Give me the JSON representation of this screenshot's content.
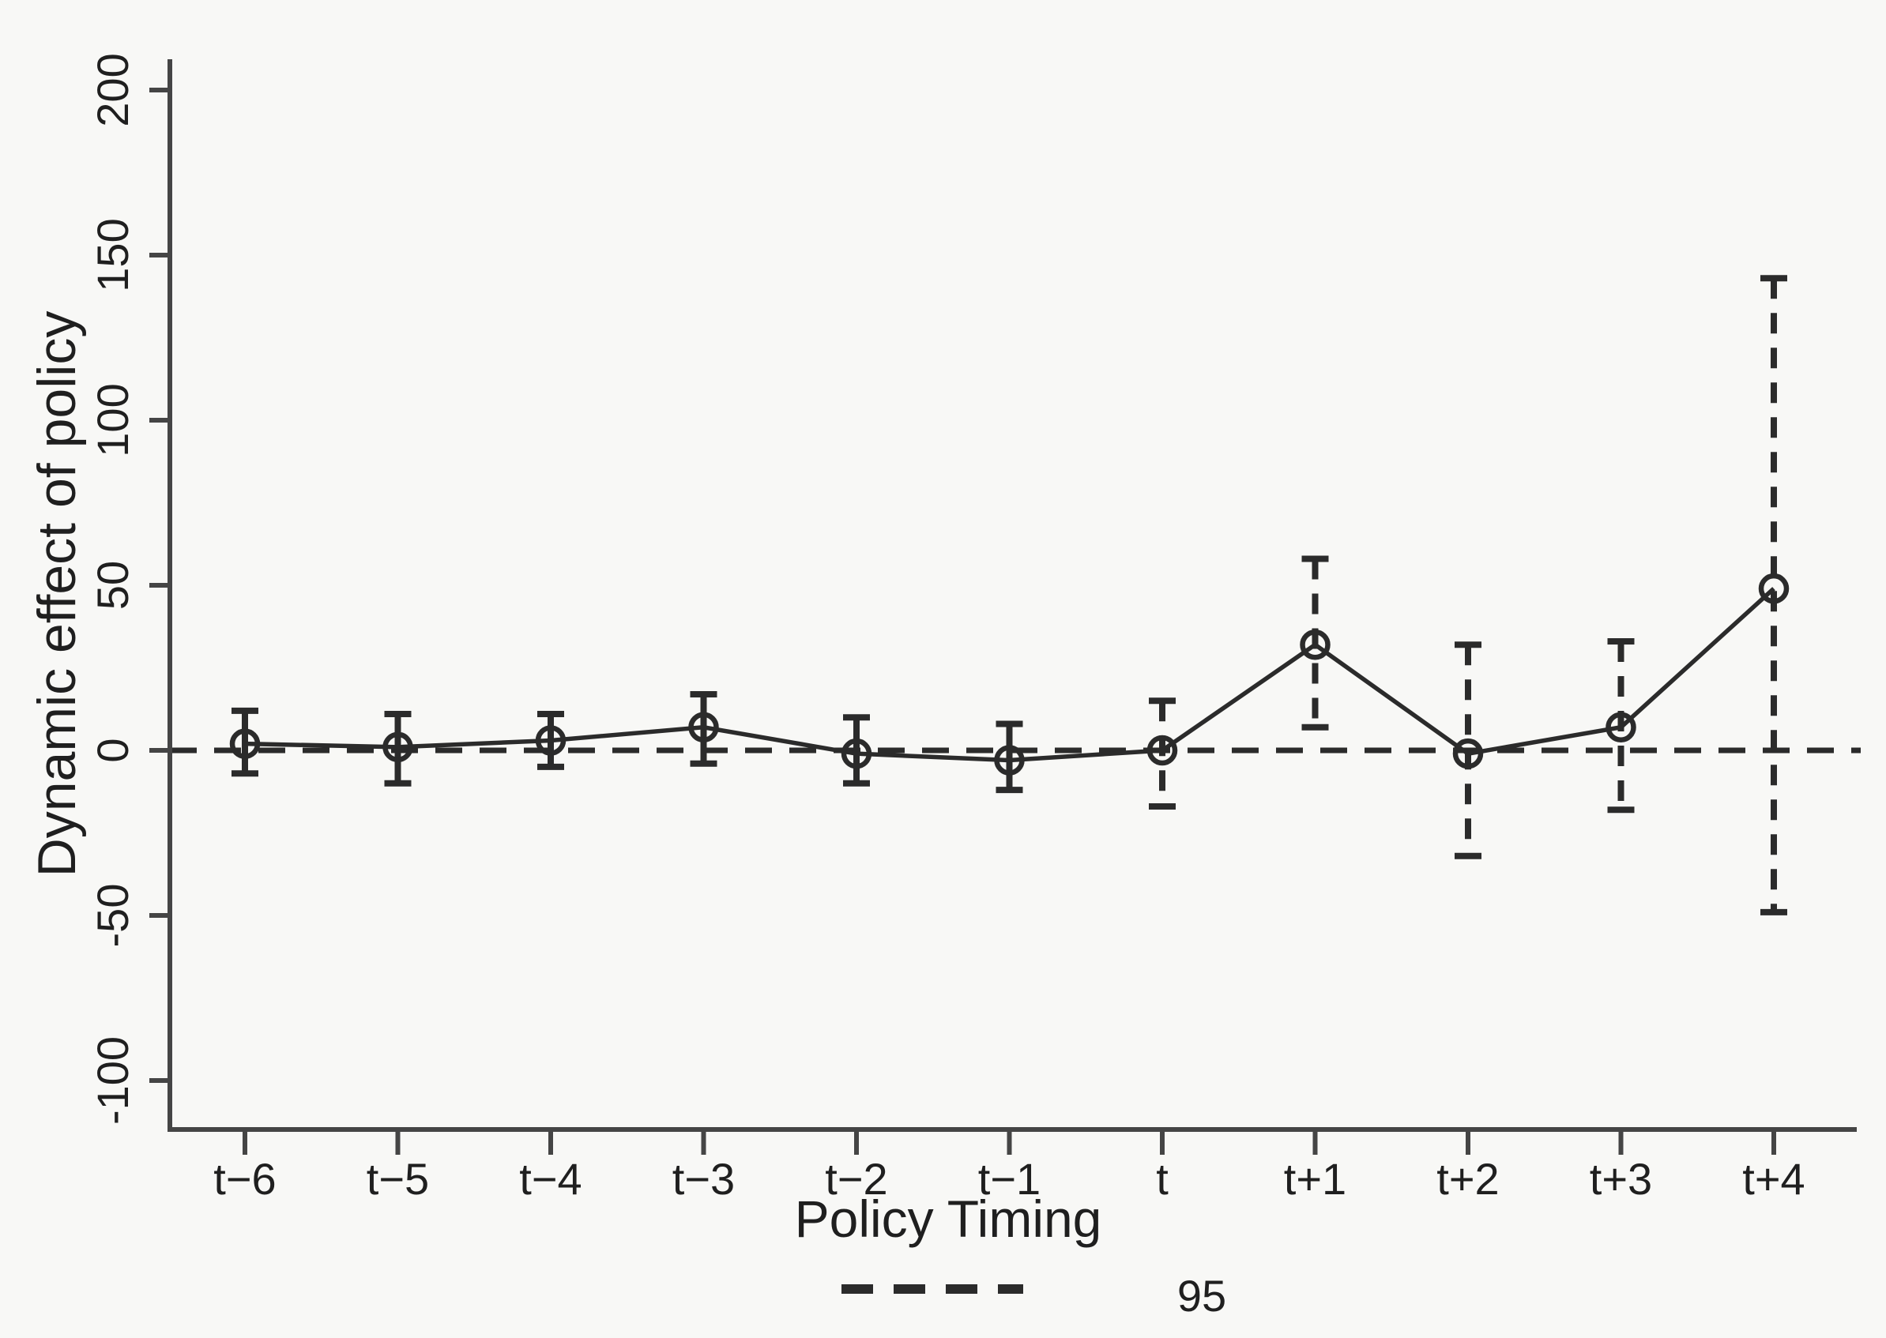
{
  "figure": {
    "background": "#f8f8f6",
    "ink_color": "#2b2b2b",
    "axis_color": "#454545"
  },
  "chart_data": {
    "type": "line",
    "title": "",
    "xlabel": "Policy Timing",
    "ylabel": "Dynamic effect of policy",
    "categories": [
      "t−6",
      "t−5",
      "t−4",
      "t−3",
      "t−2",
      "t−1",
      "t",
      "t+1",
      "t+2",
      "t+3",
      "t+4"
    ],
    "series": [
      {
        "name": "Dynamic effect of policy",
        "marker": "open-circle",
        "line_style": "solid",
        "values": [
          2,
          1,
          3,
          7,
          -1,
          -3,
          0,
          32,
          -1,
          7,
          49
        ],
        "ci_low": [
          -7,
          -10,
          -5,
          -4,
          -10,
          -12,
          -17,
          7,
          -32,
          -18,
          -49
        ],
        "ci_high": [
          12,
          11,
          11,
          17,
          10,
          8,
          15,
          58,
          32,
          33,
          143
        ],
        "ci_style": [
          "solid",
          "solid",
          "solid",
          "solid",
          "solid",
          "solid",
          "dashed",
          "dashed",
          "dashed",
          "dashed",
          "dashed"
        ]
      }
    ],
    "yticks": [
      200,
      150,
      100,
      50,
      0,
      -50,
      -100
    ],
    "ytick_labels": [
      "200",
      "150",
      "100",
      "50",
      "0",
      "-50",
      "-100"
    ],
    "ylim": [
      -115,
      209
    ],
    "reference_line": {
      "y": 0,
      "style": "dashed"
    },
    "grid": false,
    "legend": {
      "position": "bottom-center",
      "entries": [
        {
          "label": "95",
          "line_style": "dashed"
        }
      ]
    }
  }
}
